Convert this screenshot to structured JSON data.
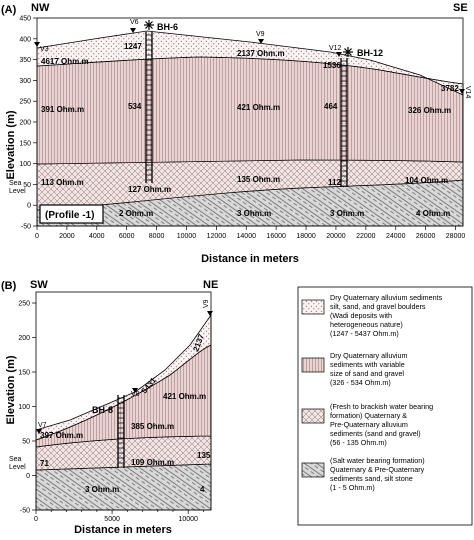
{
  "panelA": {
    "panel_label": "(A)",
    "dir_left": "NW",
    "dir_right": "SE",
    "ylabel": "Elevation (m)",
    "xlabel": "Distance in meters",
    "sea_level": [
      "Sea",
      "Level"
    ],
    "profile_label": "(Profile -1)",
    "yticks": [
      "450",
      "400",
      "350",
      "300",
      "250",
      "200",
      "150",
      "100",
      "50",
      "0",
      "-50"
    ],
    "xticks": [
      "0",
      "2000",
      "4000",
      "6000",
      "8000",
      "10000",
      "12000",
      "14000",
      "16000",
      "18000",
      "20000",
      "22000",
      "24000",
      "26000",
      "28000"
    ],
    "vstations": [
      "V3",
      "V6",
      "V9",
      "V12",
      "V14"
    ],
    "boreholes": [
      "BH-6",
      "BH-12"
    ],
    "resistivities": [
      "4617 Ohm.m",
      "1247",
      "2137 Ohm.m",
      "1536",
      "391 Ohm.m",
      "534",
      "421 Ohm.m",
      "464",
      "326 Ohm.m",
      "3782",
      "113 Ohm.m",
      "127 Ohm.m",
      "135 Ohm.m",
      "112",
      "104 Ohm.m",
      "2 Ohm.m",
      "3 Ohm.m",
      "3 Ohm.m",
      "4 Ohm.m"
    ]
  },
  "panelB": {
    "panel_label": "(B)",
    "dir_left": "SW",
    "dir_right": "NE",
    "ylabel": "Elevation (m)",
    "xlabel": "Distance in meters",
    "sea_level": [
      "Sea",
      "Level"
    ],
    "yticks": [
      "250",
      "200",
      "150",
      "100",
      "50",
      "0",
      "-50"
    ],
    "xticks": [
      "0",
      "5000",
      "10000"
    ],
    "vstations": [
      "V7",
      "V8",
      "V9"
    ],
    "borehole": "BH-8",
    "resistivities": [
      "2137",
      "5431",
      "397 Ohm.m",
      "421 Ohm.m",
      "385 Ohm.m",
      "71",
      "109 Ohm.m",
      "135",
      "3 Ohm.m",
      "4"
    ]
  },
  "legend": [
    {
      "pattern": "dots",
      "lines": [
        "Dry Quaternary alluvium sediments",
        "silt, sand, and gravel boulders",
        "(Wadi deposits with",
        "heterogeneous nature)",
        "(1247 - 5437 Ohm.m)"
      ]
    },
    {
      "pattern": "stripes",
      "lines": [
        "Dry Quaternary alluvium",
        "sediments with variable",
        "size of sand and gravel",
        "(326 - 534 Ohm.m)"
      ]
    },
    {
      "pattern": "cross",
      "lines": [
        "(Fresh to  brackish water bearing",
        "formation) Quaternary &",
        "Pre-Quaternary alluvium",
        "sediments (sand and gravel)",
        "(56 - 135  Ohm.m)"
      ]
    },
    {
      "pattern": "hatch",
      "lines": [
        "(Salt water bearing formation)",
        "Quaternary & Pre-Quaternary",
        "sediments sand, silt stone",
        "(1 - 5  Ohm.m)"
      ]
    }
  ],
  "colors": {
    "dots_fill": "#fdf3f3",
    "stripes_fill": "#ead3d3",
    "cross_fill": "#f3e4e4",
    "hatch_fill": "#d9d9d9"
  }
}
